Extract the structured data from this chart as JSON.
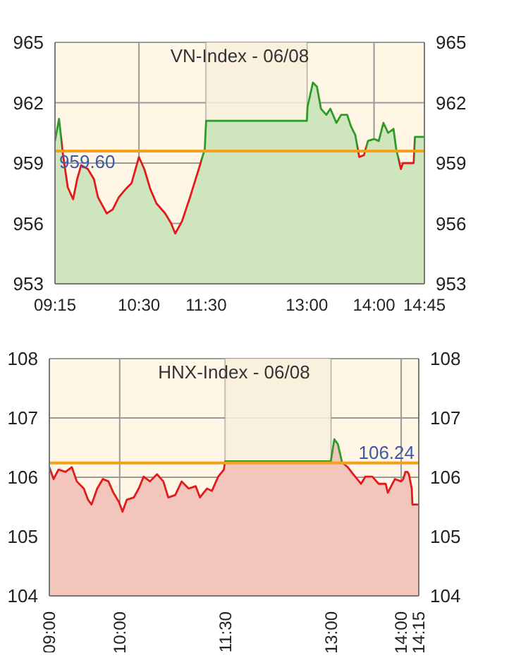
{
  "chart_data": [
    {
      "type": "area",
      "title": "VN-Index - 06/08",
      "grid": true,
      "x": [
        9.25,
        9.31,
        9.37,
        9.44,
        9.52,
        9.58,
        9.64,
        9.74,
        9.83,
        9.89,
        10.02,
        10.11,
        10.2,
        10.3,
        10.39,
        10.5,
        10.58,
        10.67,
        10.76,
        10.89,
        10.98,
        11.04,
        11.14,
        11.26,
        11.39,
        11.48,
        11.5,
        13.0,
        13.01,
        13.09,
        13.15,
        13.21,
        13.29,
        13.35,
        13.44,
        13.51,
        13.6,
        13.66,
        13.72,
        13.78,
        13.85,
        13.91,
        14.0,
        14.07,
        14.14,
        14.21,
        14.29,
        14.33,
        14.4,
        14.43,
        14.59,
        14.61,
        14.75
      ],
      "xlim": [
        9.25,
        14.75
      ],
      "xticks": [
        {
          "value": 9.25,
          "label": "09:15"
        },
        {
          "value": 10.5,
          "label": "10:30"
        },
        {
          "value": 11.5,
          "label": "11:30"
        },
        {
          "value": 13,
          "label": "13:00"
        },
        {
          "value": 14,
          "label": "14:00"
        },
        {
          "value": 14.75,
          "label": "14:45"
        }
      ],
      "ylim": [
        953,
        965
      ],
      "yticks": [
        953,
        956,
        959,
        962,
        965
      ],
      "y2lim": [
        953,
        965
      ],
      "y2ticks": [
        953,
        956,
        959,
        962,
        965
      ],
      "series": [
        {
          "color": "#cfe5bd",
          "values": [
            960.1,
            961.2,
            959.4,
            957.8,
            957.2,
            958.2,
            958.9,
            958.7,
            958.2,
            957.3,
            956.5,
            956.7,
            957.3,
            957.7,
            958.0,
            959.3,
            958.7,
            957.7,
            957.0,
            956.5,
            956.0,
            955.5,
            956.1,
            957.3,
            958.7,
            959.7,
            961.1,
            961.1,
            961.8,
            963.0,
            962.8,
            961.7,
            961.4,
            961.7,
            961.0,
            961.4,
            961.4,
            960.8,
            960.4,
            959.3,
            959.4,
            960.1,
            960.2,
            960.1,
            961.0,
            960.5,
            960.7,
            959.7,
            958.7,
            959.0,
            959.0,
            960.3,
            960.3
          ],
          "colors": [
            "#2e9b26",
            "#2e9b26",
            "#e31a1c",
            "#e31a1c",
            "#e31a1c",
            "#e31a1c",
            "#e31a1c",
            "#e31a1c",
            "#e31a1c",
            "#e31a1c",
            "#e31a1c",
            "#e31a1c",
            "#e31a1c",
            "#e31a1c",
            "#e31a1c",
            "#e31a1c",
            "#e31a1c",
            "#e31a1c",
            "#e31a1c",
            "#e31a1c",
            "#e31a1c",
            "#e31a1c",
            "#e31a1c",
            "#e31a1c",
            "#e31a1c",
            "#2e9b26",
            "#2e9b26",
            "#2e9b26",
            "#2e9b26",
            "#2e9b26",
            "#2e9b26",
            "#2e9b26",
            "#2e9b26",
            "#2e9b26",
            "#2e9b26",
            "#2e9b26",
            "#2e9b26",
            "#2e9b26",
            "#2e9b26",
            "#e31a1c",
            "#e31a1c",
            "#2e9b26",
            "#2e9b26",
            "#2e9b26",
            "#2e9b26",
            "#2e9b26",
            "#2e9b26",
            "#2e9b26",
            "#e31a1c",
            "#e31a1c",
            "#e31a1c",
            "#2e9b26",
            "#2e9b26"
          ]
        }
      ],
      "bands": [
        {
          "axis": "x",
          "from": 11.5,
          "to": 13,
          "color": "#f8f0dc"
        }
      ],
      "ref_lines": [
        {
          "axis": "y",
          "value": 959.6,
          "label": "959.60",
          "color": "#f5a01a"
        }
      ]
    },
    {
      "type": "area",
      "title": "HNX-Index - 06/08",
      "grid": true,
      "x": [
        9.0,
        9.06,
        9.13,
        9.23,
        9.32,
        9.39,
        9.49,
        9.55,
        9.6,
        9.68,
        9.76,
        9.84,
        9.91,
        9.99,
        10.04,
        10.1,
        10.2,
        10.27,
        10.34,
        10.43,
        10.53,
        10.62,
        10.69,
        10.79,
        10.88,
        10.98,
        11.08,
        11.14,
        11.24,
        11.31,
        11.4,
        11.48,
        11.5,
        13.0,
        13.05,
        13.1,
        13.16,
        13.24,
        13.32,
        13.43,
        13.49,
        13.59,
        13.68,
        13.78,
        13.81,
        13.91,
        14.0,
        14.03,
        14.06,
        14.09,
        14.11,
        14.15,
        14.16,
        14.25
      ],
      "xlim": [
        9,
        14.25
      ],
      "xticks": [
        {
          "value": 9,
          "label": "09:00"
        },
        {
          "value": 10,
          "label": "10:00"
        },
        {
          "value": 11.5,
          "label": "11:30"
        },
        {
          "value": 13,
          "label": "13:00"
        },
        {
          "value": 14,
          "label": "14:00"
        },
        {
          "value": 14.25,
          "label": "14:15"
        }
      ],
      "ylim": [
        104,
        108
      ],
      "yticks": [
        104,
        105,
        106,
        107,
        108
      ],
      "y2lim": [
        104,
        108
      ],
      "y2ticks": [
        104,
        105,
        106,
        107,
        108
      ],
      "series": [
        {
          "color": "#f3c6bb",
          "values": [
            106.17,
            105.97,
            106.13,
            106.09,
            106.17,
            105.93,
            105.81,
            105.62,
            105.54,
            105.81,
            105.97,
            105.93,
            105.74,
            105.58,
            105.42,
            105.62,
            105.66,
            105.81,
            106.01,
            105.93,
            106.05,
            105.93,
            105.66,
            105.7,
            105.93,
            105.81,
            105.85,
            105.66,
            105.81,
            105.77,
            106.01,
            106.13,
            106.27,
            106.27,
            106.64,
            106.56,
            106.25,
            106.17,
            106.05,
            105.89,
            106.01,
            106.01,
            105.89,
            105.89,
            105.74,
            105.97,
            105.93,
            105.97,
            106.09,
            106.09,
            106.05,
            105.81,
            105.54,
            105.54
          ],
          "colors": [
            "#e31a1c",
            "#e31a1c",
            "#e31a1c",
            "#e31a1c",
            "#e31a1c",
            "#e31a1c",
            "#e31a1c",
            "#e31a1c",
            "#e31a1c",
            "#e31a1c",
            "#e31a1c",
            "#e31a1c",
            "#e31a1c",
            "#e31a1c",
            "#e31a1c",
            "#e31a1c",
            "#e31a1c",
            "#e31a1c",
            "#e31a1c",
            "#e31a1c",
            "#e31a1c",
            "#e31a1c",
            "#e31a1c",
            "#e31a1c",
            "#e31a1c",
            "#e31a1c",
            "#e31a1c",
            "#e31a1c",
            "#e31a1c",
            "#e31a1c",
            "#e31a1c",
            "#e31a1c",
            "#2e9b26",
            "#2e9b26",
            "#2e9b26",
            "#2e9b26",
            "#2e9b26",
            "#e31a1c",
            "#e31a1c",
            "#e31a1c",
            "#e31a1c",
            "#e31a1c",
            "#e31a1c",
            "#e31a1c",
            "#e31a1c",
            "#e31a1c",
            "#e31a1c",
            "#e31a1c",
            "#e31a1c",
            "#e31a1c",
            "#e31a1c",
            "#e31a1c",
            "#e31a1c",
            "#e31a1c"
          ]
        }
      ],
      "bands": [
        {
          "axis": "x",
          "from": 11.5,
          "to": 13,
          "color": "#f8f0dc"
        }
      ],
      "ref_lines": [
        {
          "axis": "y",
          "value": 106.24,
          "label": "106.24",
          "color": "#f5a01a"
        }
      ]
    }
  ]
}
